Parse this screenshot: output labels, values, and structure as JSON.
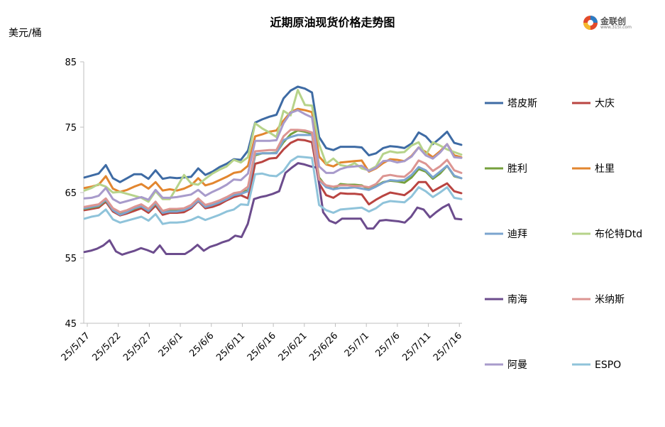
{
  "chart_data": {
    "type": "line",
    "title": "近期原油现货价格走势图",
    "unit_label": "美元/桶",
    "ylim": [
      45,
      85
    ],
    "y_ticks": [
      45,
      55,
      65,
      75,
      85
    ],
    "x_tick_labels": [
      "25/5/17",
      "25/5/22",
      "25/5/27",
      "25/6/1",
      "25/6/6",
      "25/6/11",
      "25/6/16",
      "25/6/21",
      "25/6/26",
      "25/7/1",
      "25/7/6",
      "25/7/11",
      "25/7/16"
    ],
    "grid": false,
    "legend_position": "right",
    "logo": {
      "name": "金联创",
      "sub": "www.315i.com"
    },
    "series": [
      {
        "name": "塔皮斯",
        "color": "#3E6BA4",
        "values": [
          67.3,
          67.6,
          67.9,
          69.2,
          67.2,
          66.6,
          67.2,
          67.8,
          67.8,
          67.1,
          68.4,
          67.1,
          67.3,
          67.2,
          67.3,
          67.4,
          68.7,
          67.7,
          68.2,
          68.9,
          69.4,
          70.1,
          70.0,
          71.4,
          75.7,
          76.2,
          76.6,
          76.9,
          79.4,
          80.6,
          81.2,
          80.9,
          80.3,
          73.5,
          71.8,
          71.5,
          72.0,
          72.0,
          72.0,
          71.9,
          70.7,
          71.0,
          71.8,
          72.1,
          72.0,
          71.8,
          72.5,
          74.2,
          73.6,
          72.4,
          73.3,
          74.3,
          72.6,
          72.3
        ]
      },
      {
        "name": "大庆",
        "color": "#B94441",
        "values": [
          62.3,
          62.5,
          62.7,
          63.6,
          62.1,
          61.5,
          61.8,
          62.2,
          62.6,
          61.9,
          63.0,
          61.6,
          61.9,
          61.9,
          62.0,
          62.6,
          63.7,
          62.6,
          62.8,
          63.2,
          63.8,
          64.3,
          64.6,
          64.1,
          69.4,
          69.7,
          70.2,
          70.3,
          71.6,
          72.6,
          73.1,
          73.0,
          72.7,
          66.4,
          64.6,
          64.2,
          64.9,
          64.8,
          64.8,
          64.7,
          63.2,
          63.9,
          64.5,
          65.0,
          64.8,
          64.6,
          65.4,
          66.6,
          66.6,
          65.2,
          65.8,
          66.4,
          65.2,
          64.9
        ]
      },
      {
        "name": "胜利",
        "color": "#76A03C",
        "values": [
          62.5,
          62.7,
          62.9,
          63.8,
          62.3,
          61.7,
          62.0,
          62.5,
          62.9,
          62.2,
          63.3,
          61.9,
          62.2,
          62.2,
          62.3,
          62.9,
          64.0,
          62.9,
          63.1,
          63.5,
          64.1,
          64.7,
          64.9,
          65.4,
          70.7,
          71.0,
          71.0,
          71.1,
          72.7,
          73.9,
          74.5,
          74.3,
          74.0,
          67.3,
          65.9,
          65.5,
          66.3,
          66.2,
          66.2,
          66.1,
          65.5,
          66.0,
          66.6,
          66.8,
          66.7,
          66.5,
          67.3,
          68.6,
          68.2,
          67.1,
          67.9,
          69.1,
          67.5,
          67.2
        ]
      },
      {
        "name": "杜里",
        "color": "#E2862F",
        "values": [
          65.7,
          65.9,
          66.2,
          67.5,
          65.6,
          65.1,
          65.4,
          65.9,
          66.3,
          65.6,
          66.6,
          65.3,
          65.5,
          65.3,
          65.6,
          66.1,
          67.2,
          66.1,
          66.4,
          66.9,
          67.4,
          68.0,
          68.2,
          69.1,
          73.6,
          73.9,
          74.3,
          74.5,
          76.0,
          77.3,
          77.8,
          77.6,
          77.3,
          70.5,
          69.3,
          69.0,
          69.6,
          69.7,
          69.8,
          69.9,
          68.2,
          68.7,
          69.5,
          70.1,
          70.0,
          69.8,
          70.6,
          71.9,
          71.2,
          70.4,
          71.3,
          72.4,
          70.7,
          70.4
        ]
      },
      {
        "name": "迪拜",
        "color": "#7BA4CF",
        "values": [
          62.6,
          62.8,
          63.0,
          63.9,
          62.3,
          61.6,
          62.0,
          62.6,
          62.9,
          62.2,
          63.4,
          61.9,
          62.1,
          62.1,
          62.3,
          62.8,
          63.8,
          62.8,
          63.1,
          63.5,
          64.0,
          64.6,
          64.8,
          65.2,
          70.9,
          71.0,
          71.0,
          71.0,
          73.0,
          73.5,
          73.8,
          73.8,
          73.8,
          66.9,
          65.8,
          65.5,
          65.7,
          65.7,
          65.8,
          65.6,
          65.4,
          65.9,
          66.5,
          66.9,
          66.8,
          66.9,
          67.7,
          68.9,
          68.4,
          67.3,
          68.2,
          69.1,
          67.6,
          67.2
        ]
      },
      {
        "name": "布伦特Dtd",
        "color": "#B6D38A",
        "values": [
          65.3,
          65.7,
          66.3,
          65.9,
          65.0,
          65.1,
          64.8,
          64.5,
          64.2,
          63.6,
          65.2,
          64.0,
          64.0,
          65.8,
          67.7,
          66.4,
          66.2,
          67.1,
          67.9,
          68.5,
          69.0,
          70.0,
          69.6,
          70.4,
          75.6,
          74.8,
          74.2,
          73.5,
          77.5,
          76.8,
          80.7,
          78.4,
          78.3,
          72.4,
          69.4,
          70.2,
          69.2,
          69.0,
          69.5,
          68.7,
          68.4,
          69.0,
          70.9,
          71.3,
          71.1,
          71.2,
          72.2,
          72.7,
          70.7,
          72.7,
          72.2,
          71.6,
          71.2,
          70.8
        ]
      },
      {
        "name": "南海",
        "color": "#6C4C8D",
        "values": [
          55.9,
          56.1,
          56.4,
          56.9,
          57.7,
          56.0,
          55.5,
          55.8,
          56.1,
          56.5,
          56.2,
          55.8,
          56.9,
          55.6,
          55.6,
          55.6,
          55.6,
          56.2,
          57.0,
          56.1,
          56.7,
          57.0,
          57.4,
          57.7,
          58.4,
          58.2,
          60.2,
          64.0,
          64.3,
          64.5,
          64.8,
          65.2,
          68.0,
          68.8,
          69.5,
          69.3,
          69.0,
          68.8,
          62.0,
          60.7,
          60.3,
          61.0,
          61.0,
          61.0,
          61.0,
          59.5,
          59.5,
          60.7,
          60.8,
          60.7,
          60.6,
          60.4,
          61.3,
          62.7,
          62.4,
          61.2,
          62.0,
          62.7,
          63.2,
          61.0,
          60.9
        ]
      },
      {
        "name": "米纳斯",
        "color": "#DC9592",
        "values": [
          62.8,
          63.0,
          63.2,
          64.1,
          62.6,
          62.0,
          62.3,
          62.8,
          63.2,
          62.5,
          63.6,
          62.2,
          62.5,
          62.5,
          62.6,
          63.1,
          64.1,
          63.1,
          63.4,
          63.8,
          64.3,
          64.9,
          65.1,
          65.9,
          71.3,
          71.4,
          71.5,
          71.5,
          73.6,
          74.6,
          74.6,
          74.5,
          74.2,
          67.0,
          66.1,
          65.9,
          66.1,
          66.1,
          66.0,
          66.0,
          65.8,
          66.3,
          67.5,
          67.7,
          67.5,
          67.4,
          68.3,
          69.9,
          69.4,
          68.3,
          69.0,
          70.0,
          68.4,
          68.0
        ]
      },
      {
        "name": "阿曼",
        "color": "#A89BCB",
        "values": [
          64.1,
          64.2,
          64.5,
          65.7,
          64.0,
          63.4,
          63.7,
          64.0,
          64.3,
          63.9,
          65.4,
          64.2,
          64.2,
          64.3,
          64.5,
          64.7,
          65.4,
          64.5,
          65.1,
          65.6,
          66.2,
          67.0,
          66.9,
          67.9,
          72.9,
          72.9,
          72.9,
          73.0,
          75.6,
          77.2,
          77.6,
          77.0,
          76.5,
          69.0,
          68.0,
          68.0,
          68.6,
          68.9,
          69.0,
          69.1,
          68.3,
          68.8,
          69.8,
          69.9,
          69.6,
          69.8,
          70.5,
          71.9,
          70.7,
          70.2,
          71.1,
          72.4,
          70.4,
          70.3
        ]
      },
      {
        "name": "ESPO",
        "color": "#8FC3DA",
        "values": [
          61.0,
          61.3,
          61.5,
          62.4,
          60.9,
          60.4,
          60.7,
          61.0,
          61.3,
          60.7,
          61.7,
          60.2,
          60.4,
          60.4,
          60.5,
          60.8,
          61.3,
          60.8,
          61.2,
          61.6,
          62.1,
          62.4,
          63.2,
          63.1,
          67.8,
          67.9,
          67.6,
          67.5,
          68.3,
          69.8,
          70.5,
          70.4,
          70.3,
          63.1,
          62.3,
          61.9,
          62.4,
          62.5,
          62.6,
          62.7,
          62.1,
          62.6,
          63.4,
          63.7,
          63.6,
          63.5,
          64.4,
          65.8,
          65.2,
          64.3,
          65.0,
          65.8,
          64.2,
          64.0
        ]
      }
    ]
  }
}
